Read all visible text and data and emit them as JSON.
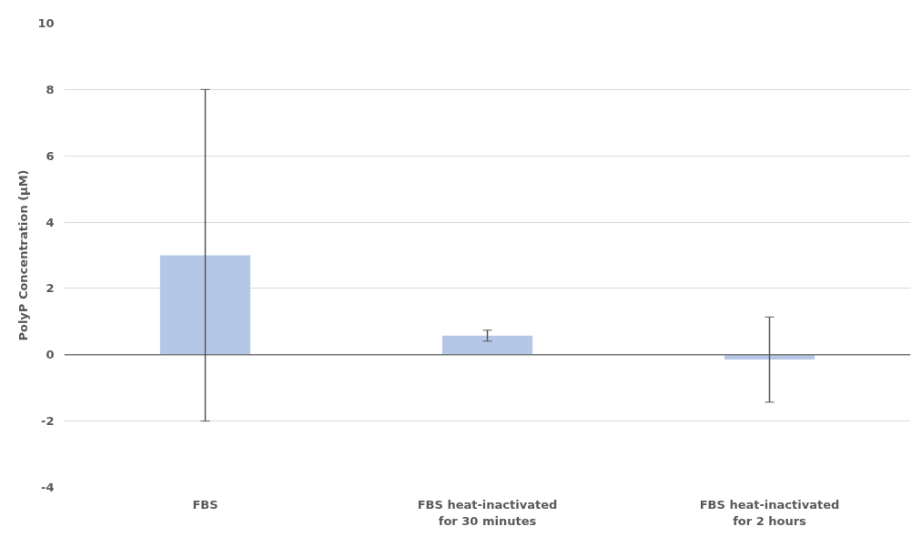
{
  "chart_data": {
    "type": "bar",
    "ylabel": "PolyP Concentration (µM)",
    "categories": [
      "FBS",
      "FBS heat-inactivated\nfor 30 minutes",
      "FBS heat-inactivated\nfor 2 hours"
    ],
    "values": [
      3.0,
      0.58,
      -0.14
    ],
    "errors": [
      [
        -2,
        8
      ],
      [
        0.41,
        0.74
      ],
      [
        -1.43,
        1.14
      ]
    ],
    "color": "#b4c7e7",
    "ylim": [
      -4,
      10
    ],
    "yticks": [
      -4,
      -2,
      0,
      2,
      4,
      6,
      8,
      10
    ],
    "grid": "y"
  }
}
